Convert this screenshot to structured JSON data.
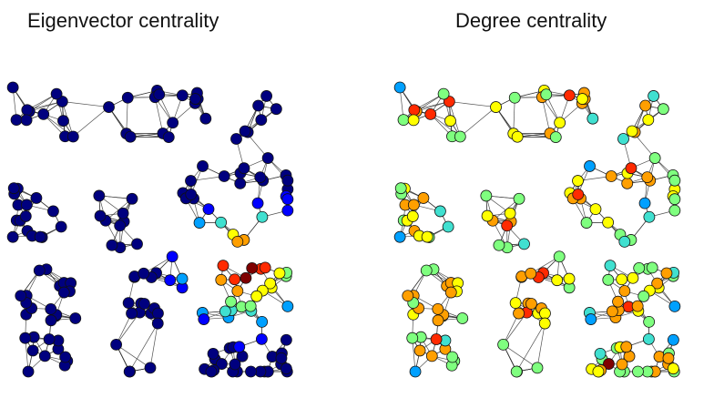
{
  "panels": [
    {
      "title": "Eigenvector centrality"
    },
    {
      "title": "Degree centrality"
    }
  ],
  "colors": {
    "colormap": [
      "#00007f",
      "#0000ff",
      "#00a0ff",
      "#40e0d0",
      "#7fff7f",
      "#ffff00",
      "#ff9f00",
      "#ff2a00",
      "#7f0000"
    ],
    "edge": "#333333",
    "node_outline": "#111111"
  }
}
